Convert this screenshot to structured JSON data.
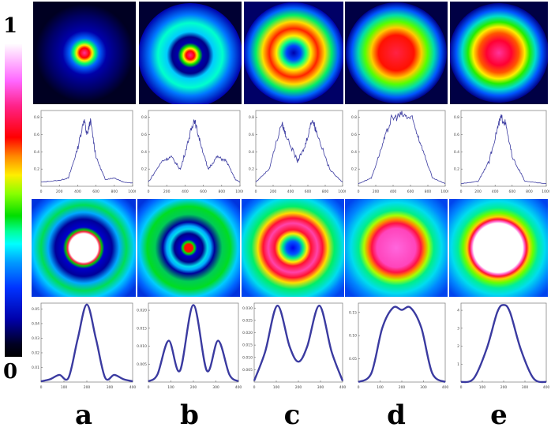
{
  "colorbar": {
    "max_label": "1",
    "min_label": "0"
  },
  "columns": [
    "a",
    "b",
    "c",
    "d",
    "e"
  ],
  "chart_data": [
    {
      "type": "line",
      "panel": "a-experimental",
      "x_ticks": [
        "0",
        "200",
        "400",
        "600",
        "800",
        "1000"
      ],
      "y_ticks": [
        "0.2",
        "0.4",
        "0.6",
        "0.8"
      ],
      "xlim": [
        0,
        1000
      ],
      "ylim": [
        0,
        0.9
      ],
      "series": [
        {
          "values": [
            [
              0,
              0.05
            ],
            [
              200,
              0.07
            ],
            [
              300,
              0.1
            ],
            [
              400,
              0.45
            ],
            [
              470,
              0.8
            ],
            [
              500,
              0.6
            ],
            [
              540,
              0.78
            ],
            [
              600,
              0.35
            ],
            [
              700,
              0.08
            ],
            [
              800,
              0.1
            ],
            [
              900,
              0.05
            ],
            [
              1000,
              0.04
            ]
          ]
        }
      ]
    },
    {
      "type": "line",
      "panel": "b-experimental",
      "x_ticks": [
        "0",
        "200",
        "400",
        "600",
        "800",
        "1000"
      ],
      "y_ticks": [
        "0.2",
        "0.4",
        "0.6",
        "0.8"
      ],
      "xlim": [
        0,
        1000
      ],
      "ylim": [
        0,
        0.9
      ],
      "series": [
        {
          "values": [
            [
              0,
              0.05
            ],
            [
              150,
              0.3
            ],
            [
              250,
              0.35
            ],
            [
              350,
              0.2
            ],
            [
              450,
              0.6
            ],
            [
              500,
              0.8
            ],
            [
              560,
              0.55
            ],
            [
              650,
              0.2
            ],
            [
              750,
              0.35
            ],
            [
              850,
              0.3
            ],
            [
              950,
              0.08
            ],
            [
              1000,
              0.05
            ]
          ]
        }
      ]
    },
    {
      "type": "line",
      "panel": "c-experimental",
      "x_ticks": [
        "0",
        "200",
        "400",
        "600",
        "800",
        "1000"
      ],
      "y_ticks": [
        "0.2",
        "0.4",
        "0.6",
        "0.8"
      ],
      "xlim": [
        0,
        1000
      ],
      "ylim": [
        0,
        0.9
      ],
      "series": [
        {
          "values": [
            [
              0,
              0.05
            ],
            [
              150,
              0.2
            ],
            [
              300,
              0.75
            ],
            [
              350,
              0.6
            ],
            [
              480,
              0.3
            ],
            [
              560,
              0.45
            ],
            [
              650,
              0.8
            ],
            [
              700,
              0.65
            ],
            [
              850,
              0.2
            ],
            [
              1000,
              0.05
            ]
          ]
        }
      ]
    },
    {
      "type": "line",
      "panel": "d-experimental",
      "x_ticks": [
        "0",
        "200",
        "400",
        "600",
        "800",
        "1000"
      ],
      "y_ticks": [
        "0.2",
        "0.4",
        "0.6",
        "0.8"
      ],
      "xlim": [
        0,
        1000
      ],
      "ylim": [
        0,
        0.9
      ],
      "series": [
        {
          "values": [
            [
              0,
              0.03
            ],
            [
              150,
              0.1
            ],
            [
              280,
              0.5
            ],
            [
              380,
              0.8
            ],
            [
              500,
              0.85
            ],
            [
              620,
              0.8
            ],
            [
              720,
              0.5
            ],
            [
              850,
              0.1
            ],
            [
              1000,
              0.03
            ]
          ]
        }
      ]
    },
    {
      "type": "line",
      "panel": "e-experimental",
      "x_ticks": [
        "0",
        "200",
        "400",
        "600",
        "800",
        "1000"
      ],
      "y_ticks": [
        "0.2",
        "0.4",
        "0.6",
        "0.8"
      ],
      "xlim": [
        0,
        1000
      ],
      "ylim": [
        0,
        0.9
      ],
      "series": [
        {
          "values": [
            [
              0,
              0.03
            ],
            [
              200,
              0.06
            ],
            [
              330,
              0.3
            ],
            [
              430,
              0.7
            ],
            [
              470,
              0.82
            ],
            [
              520,
              0.75
            ],
            [
              600,
              0.35
            ],
            [
              750,
              0.06
            ],
            [
              1000,
              0.03
            ]
          ]
        }
      ]
    },
    {
      "type": "line",
      "panel": "a-theoretical",
      "x_ticks": [
        "0",
        "100",
        "200",
        "300",
        "400"
      ],
      "y_ticks": [
        "0.01",
        "0.02",
        "0.03",
        "0.04",
        "0.05"
      ],
      "xlim": [
        0,
        400
      ],
      "ylim": [
        0,
        0.055
      ],
      "series": [
        {
          "values": [
            [
              0,
              0.0005
            ],
            [
              40,
              0.002
            ],
            [
              80,
              0.005
            ],
            [
              120,
              0.003
            ],
            [
              160,
              0.03
            ],
            [
              200,
              0.054
            ],
            [
              240,
              0.03
            ],
            [
              280,
              0.003
            ],
            [
              320,
              0.005
            ],
            [
              360,
              0.002
            ],
            [
              400,
              0.0005
            ]
          ]
        }
      ]
    },
    {
      "type": "line",
      "panel": "b-theoretical",
      "x_ticks": [
        "0",
        "100",
        "200",
        "300",
        "400"
      ],
      "y_ticks": [
        "0.005",
        "0.010",
        "0.015",
        "0.020"
      ],
      "xlim": [
        0,
        400
      ],
      "ylim": [
        0,
        0.021
      ],
      "series": [
        {
          "values": [
            [
              0,
              0.0002
            ],
            [
              40,
              0.002
            ],
            [
              90,
              0.011
            ],
            [
              140,
              0.003
            ],
            [
              200,
              0.0205
            ],
            [
              260,
              0.003
            ],
            [
              310,
              0.011
            ],
            [
              360,
              0.002
            ],
            [
              400,
              0.0002
            ]
          ]
        }
      ]
    },
    {
      "type": "line",
      "panel": "c-theoretical",
      "x_ticks": [
        "0",
        "100",
        "200",
        "300",
        "400"
      ],
      "y_ticks": [
        "0.005",
        "0.010",
        "0.015",
        "0.020",
        "0.025",
        "0.030"
      ],
      "xlim": [
        0,
        400
      ],
      "ylim": [
        0,
        0.031
      ],
      "series": [
        {
          "values": [
            [
              0,
              0.0005
            ],
            [
              50,
              0.012
            ],
            [
              105,
              0.03
            ],
            [
              160,
              0.014
            ],
            [
              200,
              0.008
            ],
            [
              240,
              0.014
            ],
            [
              295,
              0.03
            ],
            [
              350,
              0.012
            ],
            [
              400,
              0.0005
            ]
          ]
        }
      ]
    },
    {
      "type": "line",
      "panel": "d-theoretical",
      "x_ticks": [
        "0",
        "100",
        "200",
        "300",
        "400"
      ],
      "y_ticks": [
        "0.05",
        "0.10",
        "0.15"
      ],
      "xlim": [
        0,
        400
      ],
      "ylim": [
        0,
        0.175
      ],
      "series": [
        {
          "values": [
            [
              0,
              0.0
            ],
            [
              60,
              0.02
            ],
            [
              110,
              0.12
            ],
            [
              160,
              0.165
            ],
            [
              200,
              0.16
            ],
            [
              240,
              0.165
            ],
            [
              290,
              0.12
            ],
            [
              340,
              0.02
            ],
            [
              400,
              0.0
            ]
          ]
        }
      ]
    },
    {
      "type": "line",
      "panel": "e-theoretical",
      "x_ticks": [
        "0",
        "100",
        "200",
        "300",
        "400"
      ],
      "y_ticks": [
        "1",
        "2",
        "3",
        "4"
      ],
      "xlim": [
        0,
        400
      ],
      "ylim": [
        0,
        4.3
      ],
      "series": [
        {
          "values": [
            [
              0,
              0.0
            ],
            [
              60,
              0.2
            ],
            [
              120,
              1.8
            ],
            [
              170,
              3.8
            ],
            [
              200,
              4.2
            ],
            [
              230,
              3.8
            ],
            [
              280,
              1.8
            ],
            [
              340,
              0.2
            ],
            [
              400,
              0.0
            ]
          ]
        }
      ]
    }
  ]
}
